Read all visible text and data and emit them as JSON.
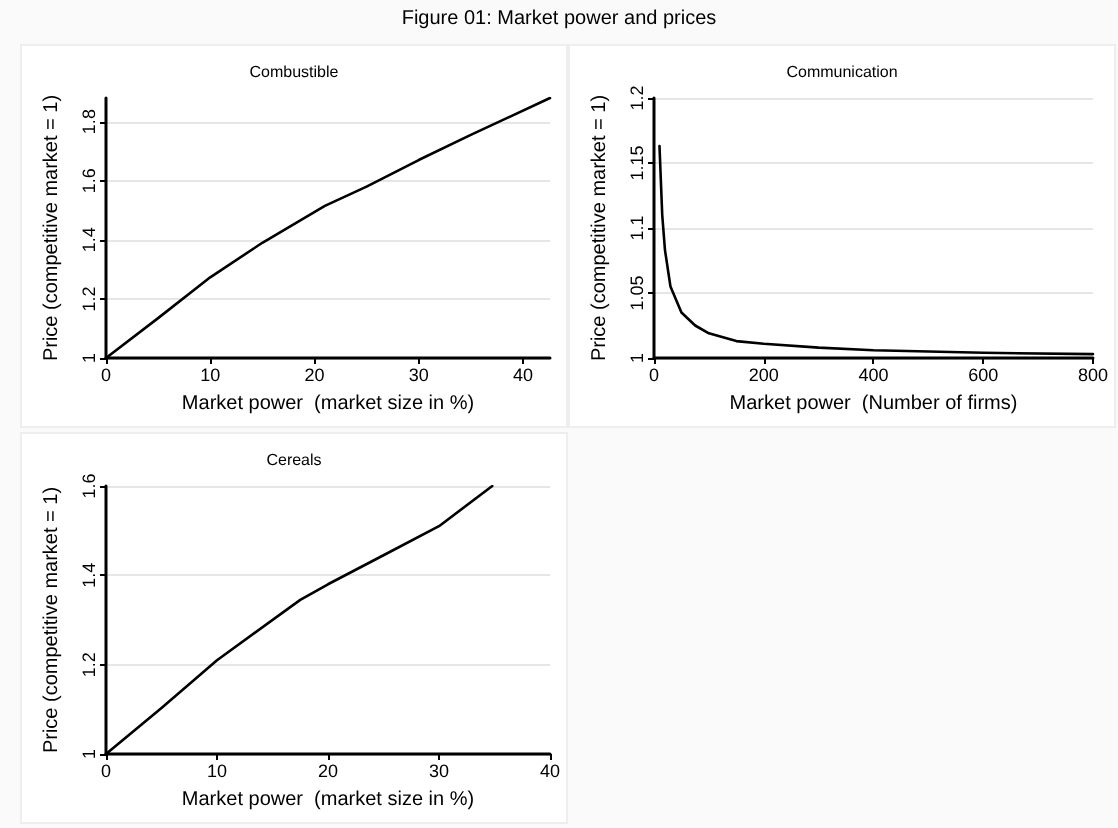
{
  "chart_data": [
    {
      "type": "line",
      "title": "Combustible",
      "annotations": [
        "Figure 01: Market power and prices"
      ],
      "xlabel": "Market power  (market size in %)",
      "ylabel": "Price (competitive market = 1)",
      "xlim": [
        0,
        42.6
      ],
      "xticks": [
        0,
        10,
        20,
        30,
        40
      ],
      "ylim": [
        1,
        1.88
      ],
      "yticks": [
        1,
        1.2,
        1.4,
        1.6,
        1.8
      ],
      "grid": "y",
      "marker": "none",
      "line_style": "solid",
      "series": [
        {
          "color": "#000000",
          "x": [
            0,
            5,
            10,
            15,
            21,
            25,
            30,
            35,
            42.6
          ],
          "values": [
            1,
            1.135,
            1.273,
            1.39,
            1.515,
            1.58,
            1.67,
            1.755,
            1.88
          ]
        }
      ]
    },
    {
      "type": "line",
      "title": "Communication",
      "xlabel": "Market power  (Number of firms)",
      "ylabel": "Price (competitive market = 1)",
      "xlim": [
        0,
        800
      ],
      "xticks": [
        0,
        200,
        400,
        600,
        800
      ],
      "ylim": [
        1,
        1.2
      ],
      "yticks": [
        1,
        1.05,
        1.1,
        1.15,
        1.2
      ],
      "grid": "y",
      "marker": "none",
      "line_style": "solid",
      "series": [
        {
          "color": "#000000",
          "x": [
            10,
            15,
            20,
            30,
            50,
            75,
            100,
            150,
            200,
            300,
            400,
            600,
            800
          ],
          "values": [
            1.163,
            1.11,
            1.083,
            1.055,
            1.035,
            1.025,
            1.019,
            1.013,
            1.011,
            1.008,
            1.006,
            1.004,
            1.003
          ]
        }
      ]
    },
    {
      "type": "line",
      "title": "Cereals",
      "xlabel": "Market power  (market size in %)",
      "ylabel": "Price (competitive market = 1)",
      "xlim": [
        0,
        40
      ],
      "xticks": [
        0,
        10,
        20,
        30,
        40
      ],
      "ylim": [
        1,
        1.6
      ],
      "yticks": [
        1,
        1.2,
        1.4,
        1.6
      ],
      "grid": "y",
      "marker": "none",
      "line_style": "solid",
      "series": [
        {
          "color": "#000000",
          "x": [
            0,
            5,
            10,
            17.5,
            20,
            25,
            30,
            34.8
          ],
          "values": [
            1,
            1.103,
            1.21,
            1.345,
            1.38,
            1.445,
            1.51,
            1.6
          ]
        }
      ]
    }
  ]
}
